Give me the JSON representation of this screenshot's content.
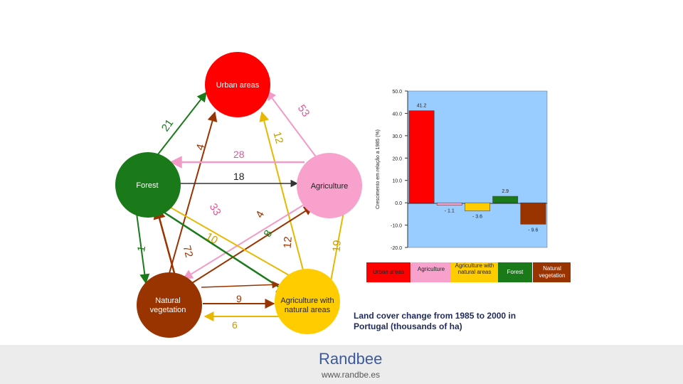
{
  "flow_diagram": {
    "nodes": {
      "urban": {
        "label": "Urban areas",
        "color": "#ff0000"
      },
      "forest": {
        "label": "Forest",
        "color": "#1a7a1a"
      },
      "agriculture": {
        "label": "Agriculture",
        "color": "#f7a1cc"
      },
      "natural": {
        "label": "Natural vegetation",
        "color": "#993300"
      },
      "agri_natural": {
        "label": "Agriculture with natural areas",
        "color": "#ffcc00"
      }
    },
    "flows": [
      {
        "from": "forest",
        "to": "urban",
        "value": "21"
      },
      {
        "from": "agriculture",
        "to": "urban",
        "value": "53"
      },
      {
        "from": "natural",
        "to": "urban",
        "value": "4"
      },
      {
        "from": "agri_natural",
        "to": "urban",
        "value": "12"
      },
      {
        "from": "agriculture",
        "to": "forest",
        "value": "28"
      },
      {
        "from": "forest",
        "to": "agriculture",
        "value": "18"
      },
      {
        "from": "agriculture",
        "to": "natural",
        "value": "33"
      },
      {
        "from": "natural",
        "to": "agriculture",
        "value": "4"
      },
      {
        "from": "agri_natural",
        "to": "forest",
        "value": "10"
      },
      {
        "from": "forest",
        "to": "agri_natural",
        "value": "8"
      },
      {
        "from": "forest",
        "to": "natural",
        "value": "1"
      },
      {
        "from": "natural",
        "to": "forest",
        "value": "72"
      },
      {
        "from": "natural",
        "to": "agri_natural",
        "value": "12"
      },
      {
        "from": "agri_natural",
        "to": "agriculture",
        "value": "19"
      },
      {
        "from": "natural",
        "to": "agri_natural",
        "value": "9"
      },
      {
        "from": "agri_natural",
        "to": "natural",
        "value": "6"
      }
    ]
  },
  "chart_data": {
    "type": "bar",
    "ylabel": "Crescimento em relação a 1985 (%)",
    "ylim": [
      -20,
      50
    ],
    "yticks": [
      "50.0",
      "40.0",
      "30.0",
      "20.0",
      "10.0",
      "0.0",
      "-10.0",
      "-20.0"
    ],
    "categories": [
      "Urban areas",
      "Agriculture",
      "Agriculture with natural areas",
      "Forest",
      "Natural vegetation"
    ],
    "values": [
      41.2,
      -1.1,
      -3.6,
      2.9,
      -9.6
    ],
    "value_labels": [
      "41.2",
      "- 1.1",
      "- 3.6",
      "2.9",
      "- 9.6"
    ],
    "colors": [
      "#ff0000",
      "#f7a1cc",
      "#ffcc00",
      "#1a7a1a",
      "#993300"
    ],
    "plot_background": "#99ccff",
    "grid": false
  },
  "caption": "Land cover change from 1985 to 2000 in Portugal (thousands of ha)",
  "brand": {
    "name": "Randbee",
    "url": "www.randbe.es"
  }
}
